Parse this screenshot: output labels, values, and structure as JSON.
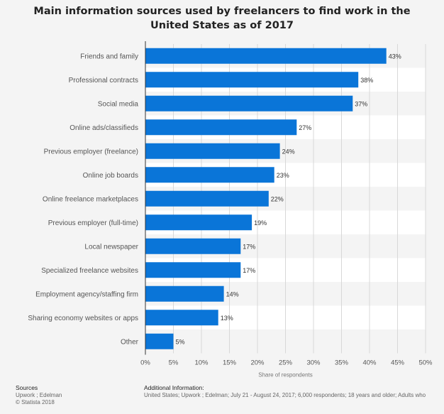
{
  "title": {
    "line1": "Main information sources used by freelancers to find work in the",
    "line2": "United States as of 2017"
  },
  "chart_data": {
    "type": "bar",
    "orientation": "horizontal",
    "title": "Main information sources used by freelancers to find work in the United States as of 2017",
    "xlabel": "Share of respondents",
    "categories": [
      "Friends and family",
      "Professional contracts",
      "Social media",
      "Online ads/classifieds",
      "Previous employer (freelance)",
      "Online job boards",
      "Online freelance marketplaces",
      "Previous employer (full-time)",
      "Local newspaper",
      "Specialized freelance websites",
      "Employment agency/staffing firm",
      "Sharing economy websites or apps",
      "Other"
    ],
    "values": [
      43,
      38,
      37,
      27,
      24,
      23,
      22,
      19,
      17,
      17,
      14,
      13,
      5
    ],
    "value_labels": [
      "43%",
      "38%",
      "37%",
      "27%",
      "24%",
      "23%",
      "22%",
      "19%",
      "17%",
      "17%",
      "14%",
      "13%",
      "5%"
    ],
    "xlim": [
      0,
      50
    ],
    "ticks": [
      0,
      5,
      10,
      15,
      20,
      25,
      30,
      35,
      40,
      45,
      50
    ],
    "tick_labels": [
      "0%",
      "5%",
      "10%",
      "15%",
      "20%",
      "25%",
      "30%",
      "35%",
      "40%",
      "45%",
      "50%"
    ],
    "grid": true,
    "colors": {
      "bar": "#0a75d8",
      "stripe": "#ffffff",
      "grid": "#d8d8d8",
      "axis": "#333333",
      "label": "#555555"
    }
  },
  "footer": {
    "sources_heading": "Sources",
    "sources_line1": "Upwork ; Edelman",
    "sources_line2": "© Statista 2018",
    "info_heading": "Additional Information:",
    "info_text": "United States; Upwork ; Edelman; July 21 - August 24, 2017; 6,000 respondents; 18 years and older; Adults who"
  }
}
